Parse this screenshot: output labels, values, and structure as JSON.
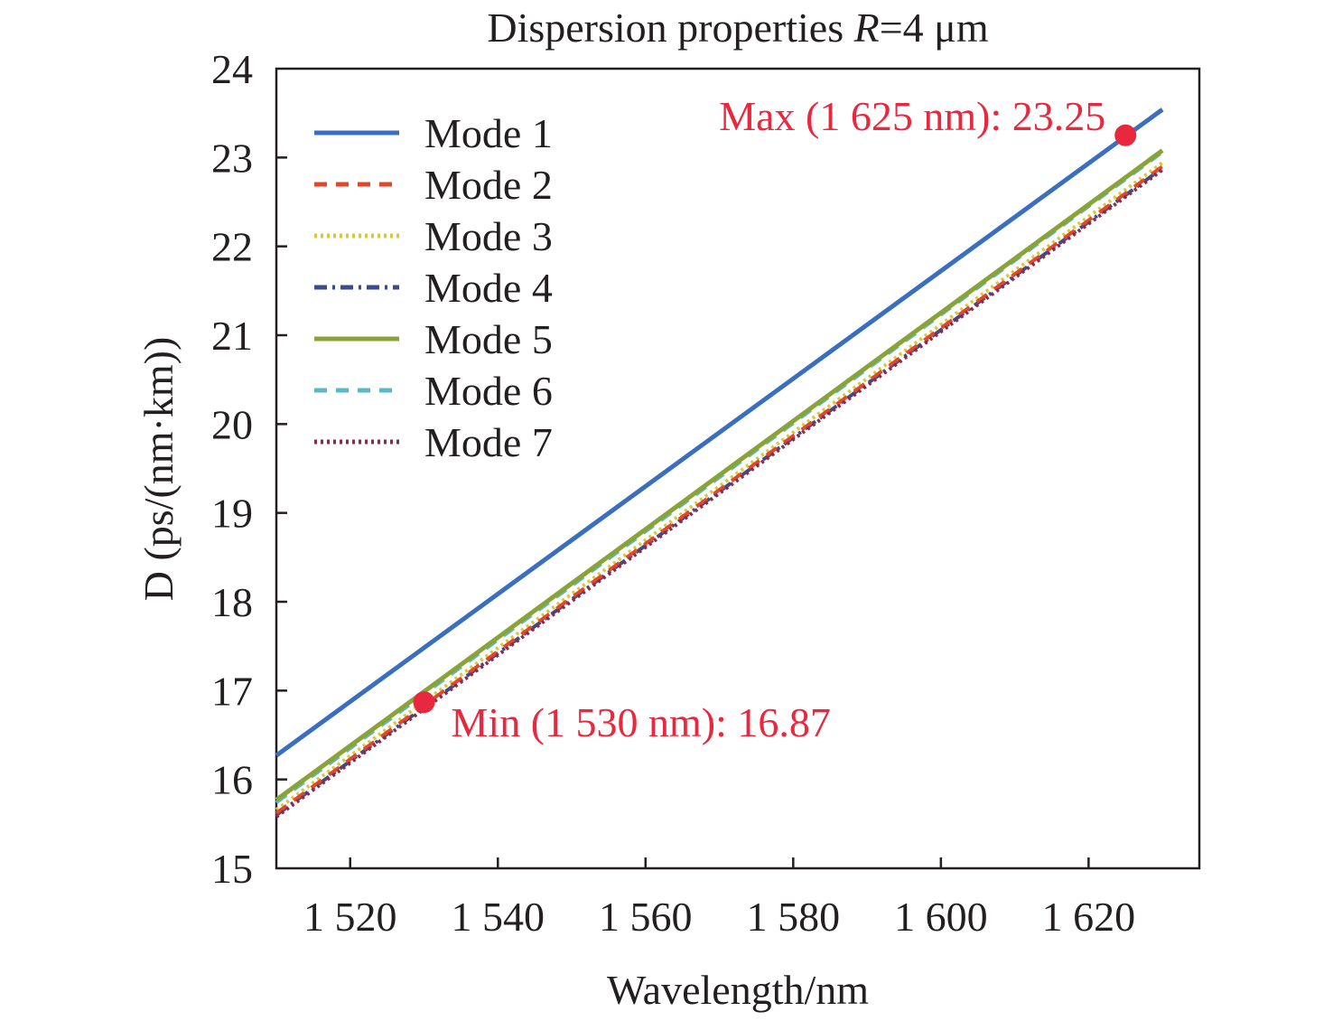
{
  "chart_data": {
    "type": "line",
    "title_prefix": "Dispersion properties ",
    "title_var": "R",
    "title_suffix": "=4 μm",
    "xlabel": "Wavelength/nm",
    "ylabel": "D (ps/(nm·km))",
    "xlim": [
      1510,
      1635
    ],
    "ylim": [
      15,
      24
    ],
    "x_ticks": [
      1520,
      1540,
      1560,
      1580,
      1600,
      1620
    ],
    "x_tick_labels": [
      "1 520",
      "1 540",
      "1 560",
      "1 580",
      "1 600",
      "1 620"
    ],
    "y_ticks": [
      15,
      16,
      17,
      18,
      19,
      20,
      21,
      22,
      23,
      24
    ],
    "y_tick_labels": [
      "15",
      "16",
      "17",
      "18",
      "19",
      "20",
      "21",
      "22",
      "23",
      "24"
    ],
    "grid": false,
    "legend_position": "upper-left",
    "series": [
      {
        "name": "Mode 1",
        "color": "#3a6fbf",
        "dash": "solid",
        "x": [
          1510,
          1630
        ],
        "y": [
          16.27,
          23.54
        ]
      },
      {
        "name": "Mode 2",
        "color": "#e0472b",
        "dash": "dashed",
        "x": [
          1510,
          1630
        ],
        "y": [
          15.62,
          22.9
        ]
      },
      {
        "name": "Mode 3",
        "color": "#d7c93a",
        "dash": "dotted",
        "x": [
          1510,
          1630
        ],
        "y": [
          15.66,
          22.94
        ]
      },
      {
        "name": "Mode 4",
        "color": "#3b4c8c",
        "dash": "dashdot",
        "x": [
          1510,
          1630
        ],
        "y": [
          15.6,
          22.88
        ]
      },
      {
        "name": "Mode 5",
        "color": "#8aa336",
        "dash": "solid",
        "x": [
          1510,
          1630
        ],
        "y": [
          15.77,
          23.08
        ]
      },
      {
        "name": "Mode 6",
        "color": "#5bb8c4",
        "dash": "dashed",
        "x": [
          1510,
          1630
        ],
        "y": [
          15.74,
          23.06
        ]
      },
      {
        "name": "Mode 7",
        "color": "#8a2a4e",
        "dash": "dotted",
        "x": [
          1510,
          1630
        ],
        "y": [
          15.58,
          22.86
        ]
      }
    ],
    "annotations": [
      {
        "text": "Max (1 625 nm): 23.25",
        "x": 1625,
        "y": 23.25,
        "color": "#e8283f"
      },
      {
        "text": "Min (1 530 nm): 16.87",
        "x": 1530,
        "y": 16.87,
        "color": "#e8283f"
      }
    ]
  }
}
